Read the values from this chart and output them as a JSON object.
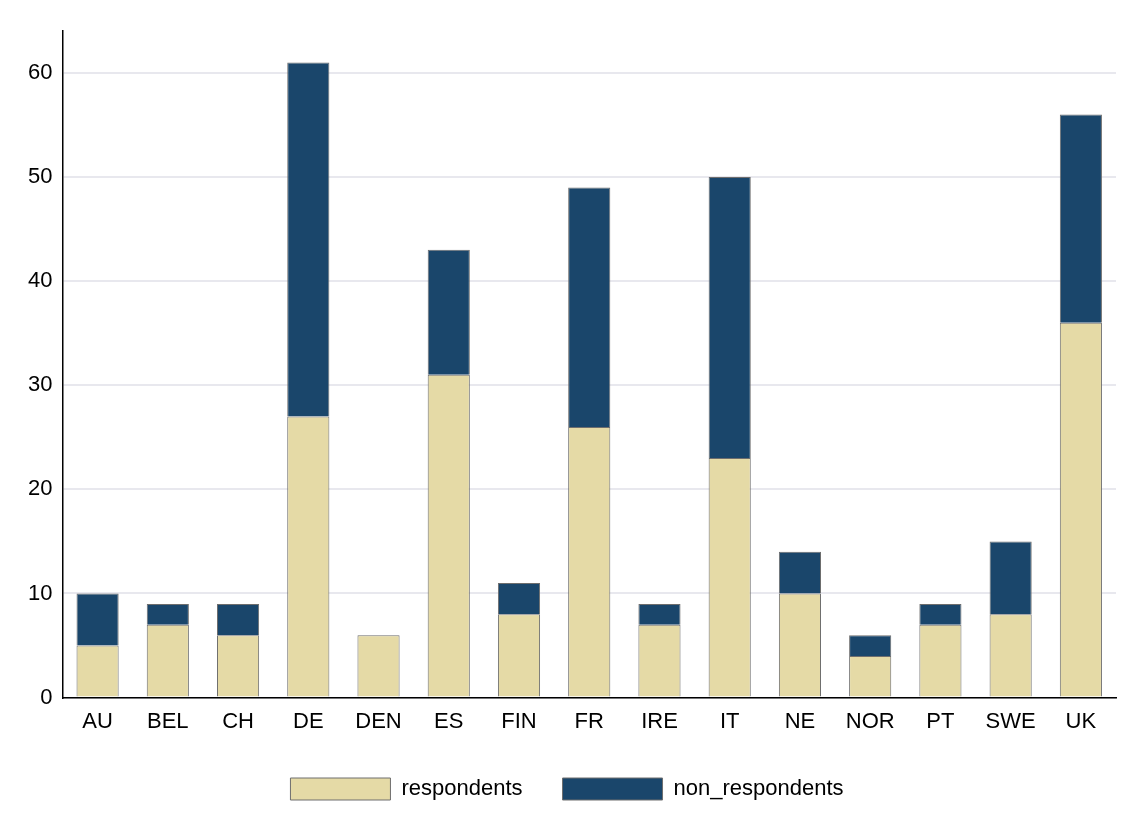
{
  "chart_data": {
    "type": "bar",
    "stacked": true,
    "categories": [
      "AU",
      "BEL",
      "CH",
      "DE",
      "DEN",
      "ES",
      "FIN",
      "FR",
      "IRE",
      "IT",
      "NE",
      "NOR",
      "PT",
      "SWE",
      "UK"
    ],
    "series": [
      {
        "name": "respondents",
        "color": "#e5daa6",
        "values": [
          5,
          7,
          6,
          27,
          6,
          31,
          8,
          26,
          7,
          23,
          10,
          4,
          7,
          8,
          36
        ]
      },
      {
        "name": "non_respondents",
        "color": "#1a466b",
        "values": [
          5,
          2,
          3,
          34,
          0,
          12,
          3,
          23,
          2,
          27,
          4,
          2,
          2,
          7,
          20
        ]
      }
    ],
    "ylim": [
      0,
      64
    ],
    "yticks": [
      0,
      10,
      20,
      30,
      40,
      50,
      60
    ],
    "grid": "y",
    "legend": "bottom"
  }
}
